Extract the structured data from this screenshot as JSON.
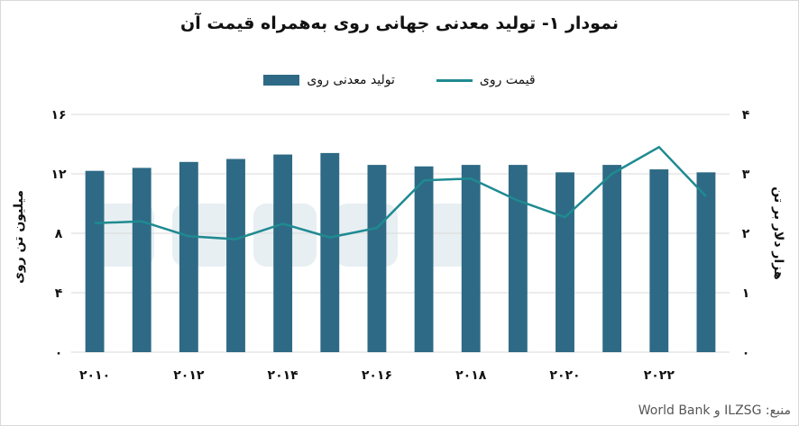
{
  "chart_data": {
    "type": "bar",
    "title": "نمودار ۱- تولید معدنی جهانی روی به‌همراه قیمت آن",
    "categories": [
      "۲۰۱۰",
      "۲۰۱۱",
      "۲۰۱۲",
      "۲۰۱۳",
      "۲۰۱۴",
      "۲۰۱۵",
      "۲۰۱۶",
      "۲۰۱۷",
      "۲۰۱۸",
      "۲۰۱۹",
      "۲۰۲۰",
      "۲۰۲۱",
      "۲۰۲۲",
      "۲۰۲۳"
    ],
    "x_tick_labels": [
      "۲۰۱۰",
      "۲۰۱۲",
      "۲۰۱۴",
      "۲۰۱۶",
      "۲۰۱۸",
      "۲۰۲۰",
      "۲۰۲۲"
    ],
    "series": [
      {
        "name": "تولید معدنی روی",
        "type": "bar",
        "axis": "left",
        "color": "#2e6a85",
        "values": [
          12.2,
          12.4,
          12.8,
          13.0,
          13.3,
          13.4,
          12.6,
          12.5,
          12.6,
          12.6,
          12.1,
          12.6,
          12.3,
          12.1
        ]
      },
      {
        "name": "قیمت روی",
        "type": "line",
        "axis": "right",
        "color": "#1f8a91",
        "values": [
          2.17,
          2.2,
          1.95,
          1.9,
          2.16,
          1.93,
          2.09,
          2.89,
          2.92,
          2.55,
          2.27,
          3.0,
          3.45,
          2.62
        ]
      }
    ],
    "y_left": {
      "label": "میلیون تن روی",
      "lim": [
        0,
        16
      ],
      "ticks": [
        "۰",
        "۴",
        "۸",
        "۱۲",
        "۱۶"
      ]
    },
    "y_right": {
      "label": "هزار دلار بر تن",
      "lim": [
        0,
        4
      ],
      "ticks": [
        "۰",
        "۱",
        "۲",
        "۳",
        "۴"
      ]
    },
    "grid": "horizontal",
    "legend_position": "top"
  },
  "source_text": "منبع: ILZSG و World Bank"
}
